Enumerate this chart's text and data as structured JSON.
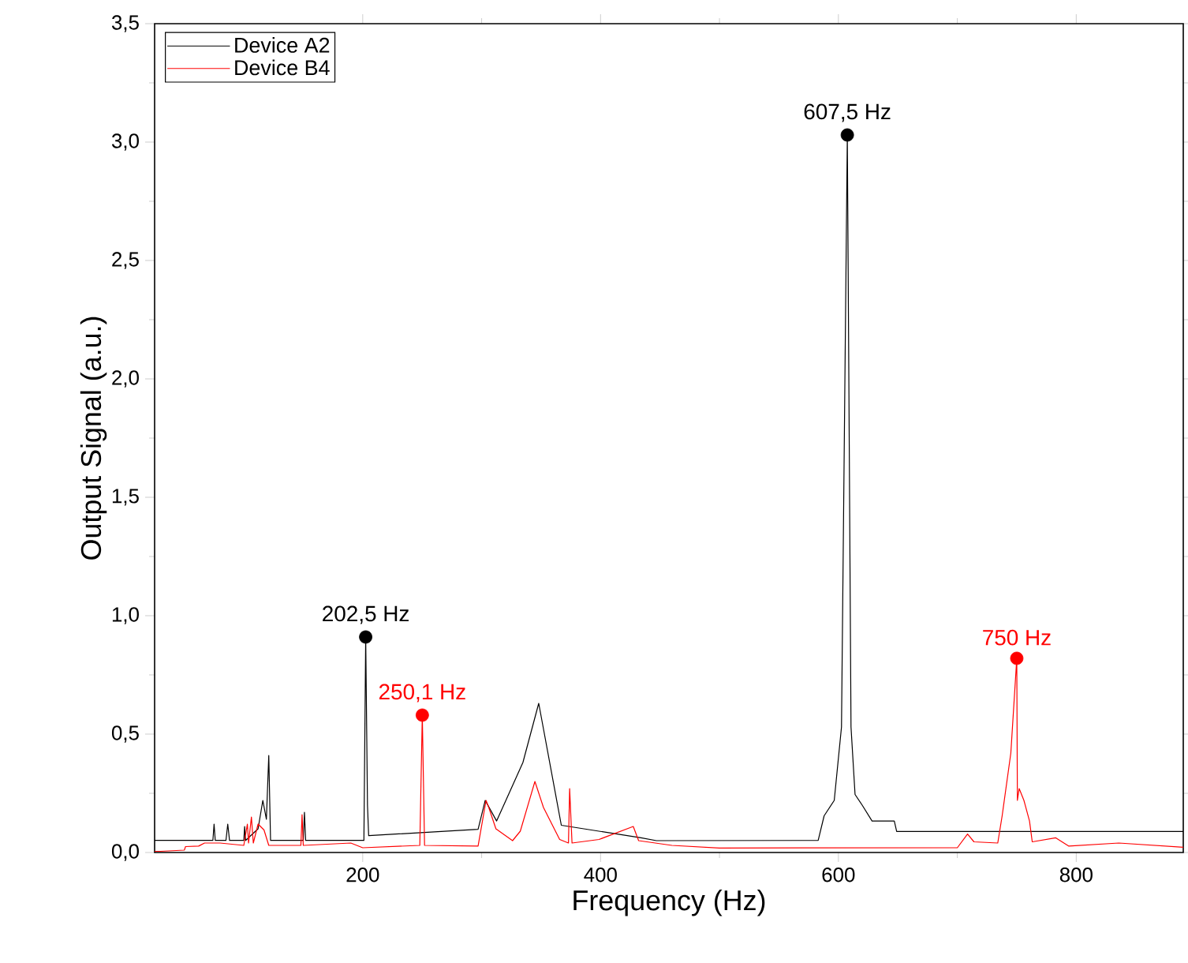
{
  "chart_data": {
    "type": "line",
    "xlabel": "Frequency (Hz)",
    "ylabel": "Output Signal (a.u.)",
    "xlim": [
      25,
      890
    ],
    "ylim": [
      0,
      3.5
    ],
    "xticks": [
      200,
      400,
      600,
      800
    ],
    "yticks": [
      {
        "value": 0,
        "label": "0,0"
      },
      {
        "value": 0.5,
        "label": "0,5"
      },
      {
        "value": 1,
        "label": "1,0"
      },
      {
        "value": 1.5,
        "label": "1,5"
      },
      {
        "value": 2,
        "label": "2,0"
      },
      {
        "value": 2.5,
        "label": "2,5"
      },
      {
        "value": 3,
        "label": "3,0"
      },
      {
        "value": 3.5,
        "label": "3,5"
      }
    ],
    "legend": "top left",
    "grid": false,
    "marker": "none",
    "line_style": "solid",
    "series": [
      {
        "name": "Device A2",
        "color": "#000000",
        "x": [
          25,
          74,
          75,
          76,
          85,
          86.5,
          88,
          100,
          100.7,
          101.5,
          112,
          116,
          119,
          121,
          122.5,
          150,
          151,
          152,
          201,
          202.5,
          204,
          205,
          297,
          303,
          312.6,
          334.7,
          348,
          367,
          434,
          447,
          583,
          588,
          596.5,
          602.6,
          607.5,
          610.6,
          614,
          620,
          628.3,
          647,
          649,
          890
        ],
        "values": [
          0.051,
          0.051,
          0.12,
          0.051,
          0.051,
          0.12,
          0.051,
          0.051,
          0.11,
          0.051,
          0.1,
          0.22,
          0.14,
          0.41,
          0.051,
          0.051,
          0.17,
          0.051,
          0.051,
          0.91,
          0.2,
          0.071,
          0.098,
          0.22,
          0.133,
          0.38,
          0.63,
          0.115,
          0.062,
          0.05,
          0.051,
          0.155,
          0.22,
          0.53,
          3.03,
          0.53,
          0.245,
          0.2,
          0.133,
          0.133,
          0.089,
          0.089
        ]
      },
      {
        "name": "Device B4",
        "color": "#ff0000",
        "x": [
          25,
          30,
          50,
          51,
          62,
          67,
          80,
          100,
          103,
          104,
          106.4,
          108,
          112,
          117,
          121,
          148,
          149,
          150,
          190,
          200,
          248,
          250.1,
          252,
          297,
          303.7,
          306,
          312,
          326,
          332.5,
          344.8,
          352,
          365.6,
          373,
          374,
          376,
          398.7,
          427.5,
          432,
          460,
          500,
          700,
          708.6,
          714,
          734,
          737.7,
          745,
          750,
          750.5,
          752,
          756,
          760.7,
          763,
          782.8,
          793.8,
          835.8,
          890
        ],
        "values": [
          0.005,
          0.005,
          0.01,
          0.025,
          0.027,
          0.04,
          0.04,
          0.03,
          0.12,
          0.04,
          0.15,
          0.04,
          0.12,
          0.095,
          0.03,
          0.03,
          0.16,
          0.03,
          0.04,
          0.02,
          0.03,
          0.58,
          0.03,
          0.027,
          0.22,
          0.19,
          0.1,
          0.05,
          0.09,
          0.3,
          0.19,
          0.055,
          0.04,
          0.27,
          0.04,
          0.055,
          0.11,
          0.05,
          0.03,
          0.019,
          0.02,
          0.078,
          0.045,
          0.04,
          0.155,
          0.42,
          0.82,
          0.22,
          0.27,
          0.22,
          0.133,
          0.045,
          0.062,
          0.027,
          0.04,
          0.022
        ]
      },
      {
        "type": "scatter",
        "marker": "circle",
        "color": "#000000",
        "x": [
          202.5,
          607.5
        ],
        "values": [
          0.91,
          3.03
        ]
      },
      {
        "type": "scatter",
        "marker": "circle",
        "color": "#ff0000",
        "x": [
          250.1,
          750
        ],
        "values": [
          0.58,
          0.82
        ]
      }
    ],
    "annotations": [
      {
        "text": "202,5 Hz",
        "x": 202.5,
        "y": 0.91
      },
      {
        "text": "250,1 Hz",
        "x": 250.1,
        "y": 0.58
      },
      {
        "text": "607,5 Hz",
        "x": 607.5,
        "y": 3.03
      },
      {
        "text": "750 Hz",
        "x": 750,
        "y": 0.82
      }
    ]
  }
}
